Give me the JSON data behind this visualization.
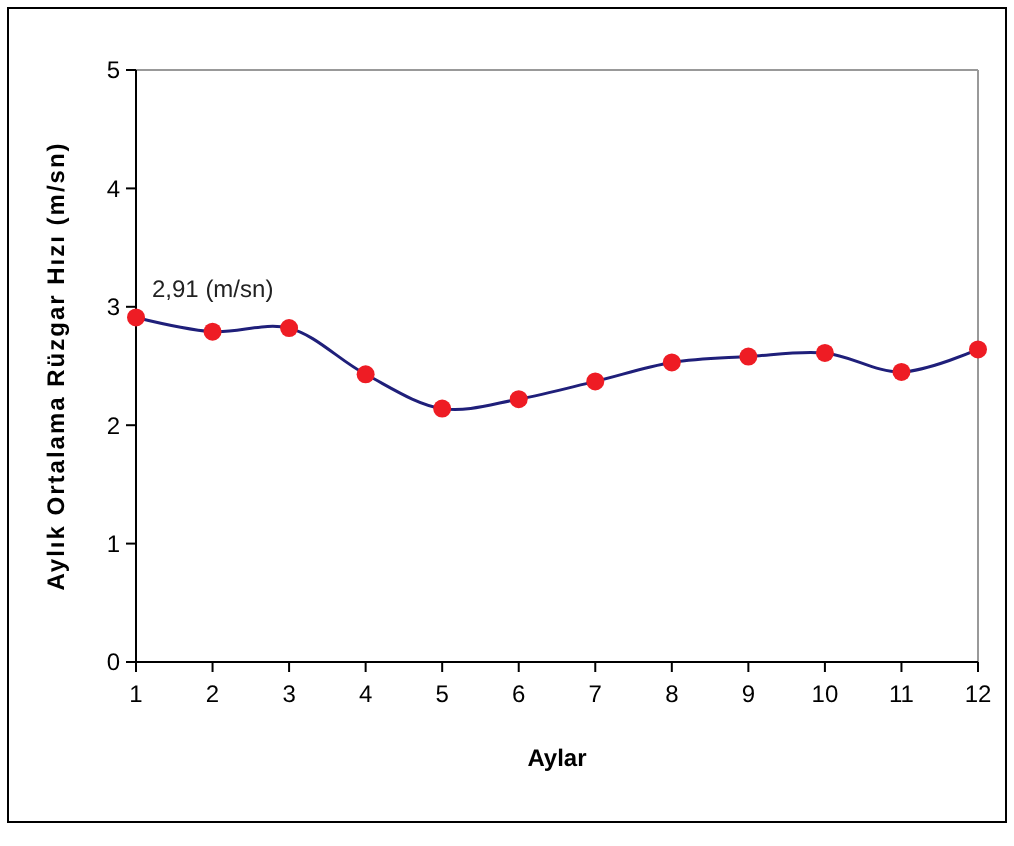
{
  "chart_data": {
    "type": "line",
    "xlabel": "Aylar",
    "ylabel": "Aylık Ortalama Rüzgar Hızı (m/sn)",
    "x": [
      1,
      2,
      3,
      4,
      5,
      6,
      7,
      8,
      9,
      10,
      11,
      12
    ],
    "series": [
      {
        "color": "#1f1f7a",
        "colors": [
          "#ee1c24",
          "#ee1c24",
          "#ee1c24",
          "#ee1c24",
          "#ee1c24",
          "#ee1c24",
          "#ee1c24",
          "#ee1c24",
          "#ee1c24",
          "#ee1c24",
          "#ee1c24",
          "#ee1c24"
        ],
        "values": [
          2.91,
          2.79,
          2.82,
          2.43,
          2.14,
          2.22,
          2.37,
          2.53,
          2.58,
          2.61,
          2.45,
          2.64
        ]
      }
    ],
    "xlim": [
      1,
      12
    ],
    "xticks": [
      1,
      2,
      3,
      4,
      5,
      6,
      7,
      8,
      9,
      10,
      11,
      12
    ],
    "ylim": [
      0,
      5
    ],
    "yticks": [
      0,
      1,
      2,
      3,
      4,
      5
    ],
    "annotations": [
      {
        "text": "2,91 (m/sn)",
        "x": 1,
        "y": 2.91
      }
    ],
    "marker": "circle"
  }
}
